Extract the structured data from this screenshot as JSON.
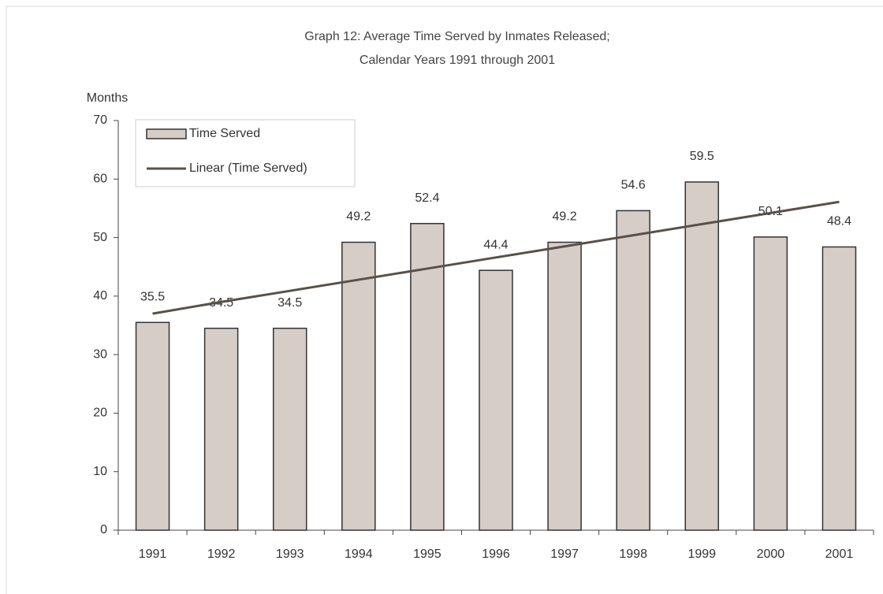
{
  "chart_data": {
    "type": "bar",
    "title": "Graph 12: Average Time Served by Inmates Released;",
    "subtitle": "Calendar Years 1991 through 2001",
    "y_label": "Months",
    "categories": [
      "1991",
      "1992",
      "1993",
      "1994",
      "1995",
      "1996",
      "1997",
      "1998",
      "1999",
      "2000",
      "2001"
    ],
    "series": [
      {
        "name": "Time Served",
        "type": "bar",
        "color": "#d5cdc6",
        "values": [
          35.5,
          34.5,
          34.5,
          49.2,
          52.4,
          44.4,
          49.2,
          54.6,
          59.5,
          50.1,
          48.4
        ]
      },
      {
        "name": "Linear (Time Served)",
        "type": "line",
        "color": "#5a5048",
        "values": [
          37.0,
          39.0,
          40.9,
          42.8,
          44.7,
          46.6,
          48.5,
          50.4,
          52.3,
          54.2,
          56.1
        ]
      }
    ],
    "ylim": [
      0,
      70
    ],
    "yticks": [
      0,
      10,
      20,
      30,
      40,
      50,
      60,
      70
    ],
    "legend": "upper left",
    "grid": false
  }
}
